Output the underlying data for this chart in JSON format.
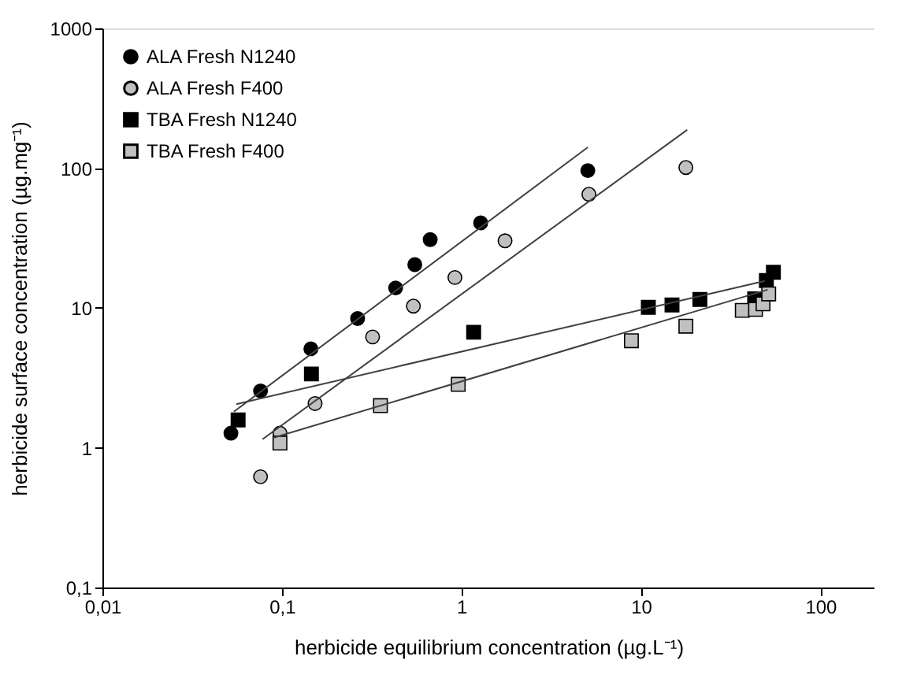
{
  "chart_data": {
    "type": "scatter",
    "xlabel": "herbicide equilibrium concentration (µg.L⁻¹)",
    "ylabel": "herbicide surface concentration (µg.mg⁻¹)",
    "log": "xy",
    "xlim": [
      0.01,
      200
    ],
    "ylim": [
      0.1,
      1000
    ],
    "xticks": [
      {
        "value": 0.01,
        "label": "0,01"
      },
      {
        "value": 0.1,
        "label": "0,1"
      },
      1,
      10,
      100
    ],
    "yticks": [
      {
        "value": 0.1,
        "label": "0,1"
      },
      1,
      10,
      100,
      1000
    ],
    "grid": false,
    "legend": "top left",
    "series": [
      {
        "name": "ALA Fresh N1240",
        "marker": "circle",
        "color": "#000000",
        "x": [
          0.052,
          0.076,
          0.145,
          0.264,
          0.43,
          0.55,
          0.67,
          1.28,
          5.06
        ],
        "values": [
          1.27,
          2.55,
          5.1,
          8.4,
          13.9,
          20.4,
          30.8,
          40.6,
          96
        ]
      },
      {
        "name": "ALA Fresh F400",
        "marker": "circle",
        "color": "#c0c0c0",
        "x": [
          0.076,
          0.0975,
          0.153,
          0.32,
          0.54,
          0.92,
          1.75,
          5.13,
          17.8
        ],
        "values": [
          0.62,
          1.27,
          2.07,
          6.2,
          10.3,
          16.5,
          30.2,
          65,
          101
        ]
      },
      {
        "name": "TBA Fresh N1240",
        "marker": "square",
        "color": "#000000",
        "x": [
          0.057,
          0.146,
          1.17,
          11,
          14.9,
          21.3,
          43,
          50,
          54.7
        ],
        "values": [
          1.58,
          3.37,
          6.7,
          10.1,
          10.5,
          11.5,
          11.6,
          15.7,
          18.0
        ]
      },
      {
        "name": "TBA Fresh F400",
        "marker": "square",
        "color": "#c0c0c0",
        "x": [
          0.0975,
          0.354,
          0.96,
          8.85,
          17.8,
          36.7,
          43.5,
          47.9,
          51.5
        ],
        "values": [
          1.08,
          2.0,
          2.84,
          5.82,
          7.4,
          9.6,
          9.77,
          10.7,
          12.6
        ]
      },
      {
        "type": "line",
        "color": "#404040",
        "x": [
          0.054,
          5.06
        ],
        "values": [
          1.81,
          141
        ]
      },
      {
        "type": "line",
        "color": "#404040",
        "x": [
          0.078,
          18.1
        ],
        "values": [
          1.15,
          188
        ]
      },
      {
        "type": "line",
        "color": "#404040",
        "x": [
          0.0557,
          49
        ],
        "values": [
          2.05,
          15.6
        ]
      },
      {
        "type": "line",
        "color": "#404040",
        "x": [
          0.09,
          50.8
        ],
        "values": [
          1.18,
          13.5
        ]
      }
    ]
  }
}
